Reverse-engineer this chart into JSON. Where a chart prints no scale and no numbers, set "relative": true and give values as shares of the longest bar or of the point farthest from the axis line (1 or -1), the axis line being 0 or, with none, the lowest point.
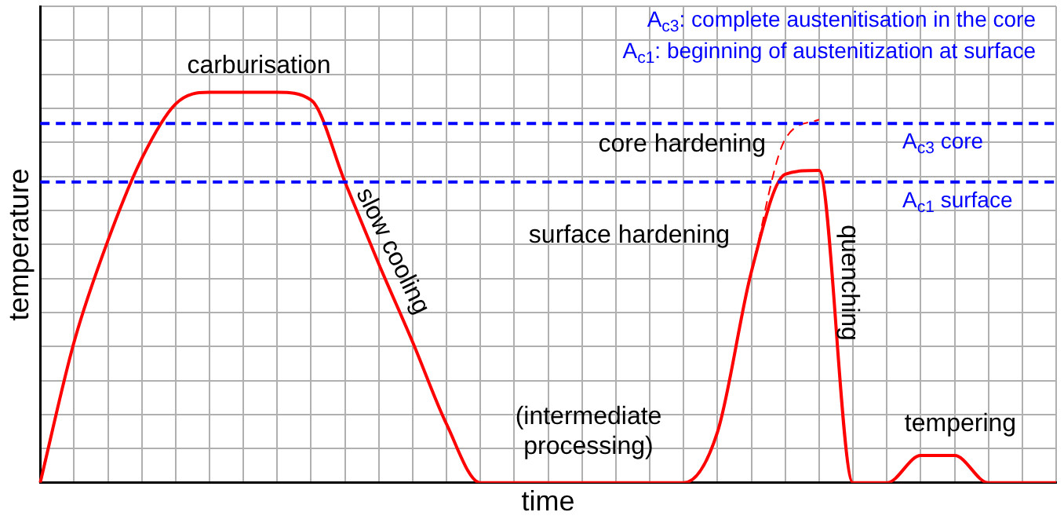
{
  "chart_data": {
    "type": "line",
    "relative": true,
    "xlabel": "time",
    "ylabel": "temperature",
    "grid": true,
    "legend": false,
    "marker": "none",
    "tick_labels": false,
    "categories": [
      null,
      null,
      null,
      null,
      null,
      null,
      null,
      null,
      null,
      null,
      null,
      null,
      null,
      null,
      null,
      null,
      null,
      null,
      null,
      null,
      null,
      null,
      null,
      null,
      null,
      null,
      null,
      null,
      null,
      null,
      null
    ],
    "series": [
      {
        "color": "#ff0000",
        "line_style": "solid",
        "values": [
          0,
          0.36,
          0.62,
          0.83,
          0.97,
          1,
          1,
          1,
          0.98,
          0.77,
          0.56,
          0.36,
          0.15,
          0,
          0,
          0,
          0,
          0,
          0,
          0,
          0.13,
          0.54,
          0.79,
          0.8,
          0,
          0,
          0.07,
          0.07,
          0,
          0,
          0
        ]
      },
      {
        "color": "#ff0000",
        "line_style": "dashed",
        "values": [
          null,
          null,
          null,
          null,
          null,
          null,
          null,
          null,
          null,
          null,
          null,
          null,
          null,
          null,
          null,
          null,
          null,
          null,
          null,
          null,
          null,
          0.54,
          0.88,
          0.93,
          null,
          null,
          null,
          null,
          null,
          null,
          null
        ]
      }
    ],
    "ref_lines": [
      {
        "axis": "y",
        "value": 0.92,
        "label": "A$_{c3}$ core",
        "color": "#0000ff",
        "line_style": "dashed"
      },
      {
        "axis": "y",
        "value": 0.77,
        "label": "A$_{c1}$ surface",
        "color": "#0000ff",
        "line_style": "dashed"
      }
    ],
    "annotations": [
      "carburisation",
      "slow cooling",
      "(intermediate processing)",
      "core hardening",
      "surface hardening",
      "quenching",
      "tempering",
      "A$_{c3}$: complete austenitisation in the core",
      "A$_{c1}$: beginning of austenitization at surface"
    ]
  }
}
